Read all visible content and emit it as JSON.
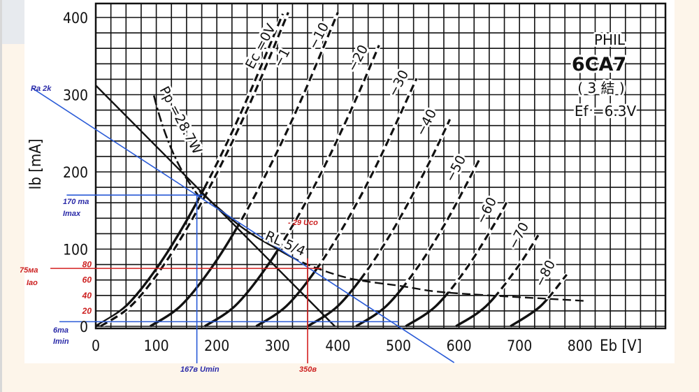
{
  "chart_data": {
    "type": "line",
    "title": "6CA7",
    "header_lines": [
      "PHIL",
      "6CA7",
      "( 3 結 )",
      "Ef =6.3V"
    ],
    "xlabel": "Eb [V]",
    "ylabel": "Ib [mA]",
    "xlim": [
      0,
      940
    ],
    "ylim": [
      0,
      418
    ],
    "grid": true,
    "x_ticks": [
      0,
      100,
      200,
      300,
      400,
      500,
      600,
      700,
      800
    ],
    "y_ticks": [
      0,
      100,
      200,
      300,
      400
    ],
    "extra_y_ticks": [
      "80",
      "60",
      "40",
      "20"
    ],
    "extra_y_tick_values": [
      80,
      60,
      40,
      20
    ],
    "series": [
      {
        "name": "Ec =0V",
        "solid_until_mA": 180,
        "x": [
          0,
          50,
          100,
          150,
          200,
          250,
          309
        ],
        "y": [
          0,
          26.3,
          74.5,
          136.9,
          210.7,
          294.5,
          404.7
        ]
      },
      {
        "name": "−1",
        "solid_until_mA": 0,
        "x": [
          8,
          58,
          108,
          158,
          208,
          258,
          318
        ],
        "y": [
          0,
          26.3,
          74.5,
          136.9,
          210.7,
          294.5,
          406.6
        ]
      },
      {
        "name": "−10",
        "solid_until_mA": 130,
        "x": [
          90,
          140,
          190,
          240,
          290,
          340,
          400
        ],
        "y": [
          0,
          26.3,
          74.5,
          136.9,
          210.7,
          294.5,
          406.6
        ]
      },
      {
        "name": "−20",
        "solid_until_mA": 100,
        "x": [
          180,
          230,
          280,
          330,
          380,
          430,
          468
        ],
        "y": [
          0,
          26.3,
          74.5,
          136.9,
          210.7,
          294.5,
          364
        ]
      },
      {
        "name": "−30",
        "solid_until_mA": 80,
        "x": [
          265,
          315,
          365,
          415,
          465,
          530
        ],
        "y": [
          0,
          26.3,
          74.5,
          136.9,
          210.7,
          321
        ]
      },
      {
        "name": "−40",
        "solid_until_mA": 62,
        "x": [
          350,
          400,
          450,
          500,
          550,
          585
        ],
        "y": [
          0,
          26.3,
          74.5,
          136.9,
          210.7,
          268
        ]
      },
      {
        "name": "−50",
        "solid_until_mA": 53,
        "x": [
          430,
          480,
          530,
          580,
          633
        ],
        "y": [
          0,
          26.3,
          74.5,
          136.9,
          215
        ]
      },
      {
        "name": "−60",
        "solid_until_mA": 45,
        "x": [
          512,
          562,
          612,
          662,
          679
        ],
        "y": [
          0,
          26.3,
          74.5,
          136.9,
          161
        ]
      },
      {
        "name": "−70",
        "solid_until_mA": 39,
        "x": [
          595,
          645,
          695,
          731
        ],
        "y": [
          0,
          26.3,
          74.5,
          118
        ]
      },
      {
        "name": "−80",
        "solid_until_mA": 35,
        "x": [
          685,
          735,
          778
        ],
        "y": [
          0,
          26.3,
          67
        ]
      }
    ],
    "power_curve": {
      "name": "Pp =28.7W",
      "watts": 28.7,
      "eb_range": [
        96,
        172
      ]
    },
    "load_curve": {
      "name": "RL 5/4",
      "solid_until_V": 330,
      "x": [
        171,
        240,
        300,
        350,
        420,
        506,
        563,
        650,
        740,
        806
      ],
      "y": [
        175,
        129,
        100,
        80,
        62,
        52,
        45,
        40,
        36,
        33
      ]
    },
    "load_line_black": {
      "x": [
        0,
        395
      ],
      "y": [
        312,
        0
      ]
    },
    "annotations": {
      "ra_line": {
        "label": "Ra 2k",
        "x": [
          -106,
          592
        ],
        "y": [
          309,
          -47
        ],
        "color": "#2a5bd7"
      },
      "imax": {
        "value": "170 ma",
        "label": "Imax",
        "ib": 170,
        "eb_from": -48,
        "eb_to": 177,
        "color": "#2a5bd7"
      },
      "imin": {
        "value": "6ma",
        "label": "Imin",
        "ib": 6,
        "eb_from": -60,
        "eb_to": 500,
        "color": "#2a5bd7"
      },
      "iao": {
        "value": "75ма",
        "label": "Iao",
        "ib": 75,
        "eb_from": -75,
        "eb_to": 373,
        "color": "#d42020"
      },
      "umin": {
        "label": "167в Umin",
        "eb": 167,
        "ib_from": 170,
        "ib_to": -48,
        "color": "#2a5bd7"
      },
      "ua": {
        "label": "350в",
        "eb": 350,
        "ib_from": 88,
        "ib_to": -48,
        "color": "#d42020"
      },
      "uco": {
        "label": "- 29 Uco",
        "color": "#d42020"
      }
    }
  }
}
